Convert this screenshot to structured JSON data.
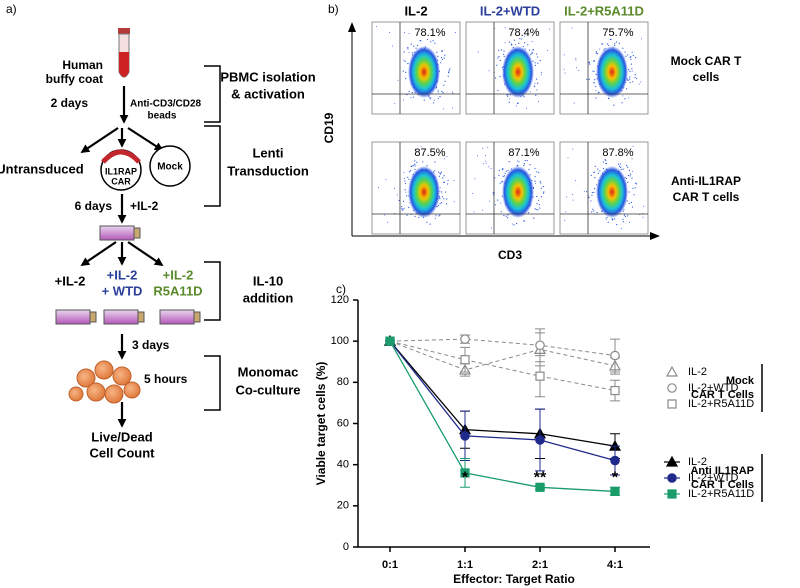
{
  "diagram": {
    "panel_label": "a)",
    "source": [
      "Human",
      "buffy coat"
    ],
    "step1_time": "2 days",
    "beads": [
      "Anti-CD3/CD28",
      "beads"
    ],
    "untransduced": "Untransduced",
    "car": [
      "IL1RAP",
      "CAR"
    ],
    "mock": "Mock",
    "step2_time": "6 days",
    "step2_add": "+IL-2",
    "cond1": "+IL-2",
    "cond2": [
      "+IL-2",
      "+ WTD"
    ],
    "cond3": [
      "+IL-2",
      "R5A11D"
    ],
    "step3_time": "3 days",
    "step4_time": "5 hours",
    "readout": [
      "Live/Dead",
      "Cell Count"
    ],
    "stages": [
      [
        "PBMC isolation",
        "& activation"
      ],
      [
        "Lenti",
        "Transduction"
      ],
      [
        "IL-10",
        "addition"
      ],
      [
        "Monomac",
        "Co-culture"
      ]
    ]
  },
  "flow": {
    "panel_label": "b)",
    "columns": [
      "IL-2",
      "IL-2+WTD",
      "IL-2+R5A11D"
    ],
    "column_colors": [
      "#000000",
      "#2a3f9a",
      "#5a8a2a"
    ],
    "rows": [
      [
        "Mock CAR T",
        "cells"
      ],
      [
        "Anti-IL1RAP",
        "CAR T cells"
      ]
    ],
    "percentages": [
      [
        "78.1%",
        "78.4%",
        "75.7%"
      ],
      [
        "87.5%",
        "87.1%",
        "87.8%"
      ]
    ],
    "ylabel": "CD19",
    "xlabel": "CD3"
  },
  "chart_data": {
    "type": "line",
    "panel_label": "c)",
    "xlabel": "Effector: Target Ratio",
    "ylabel": "Viable target cells (%)",
    "categories": [
      "0:1",
      "1:1",
      "2:1",
      "4:1"
    ],
    "ylim": [
      0,
      120
    ],
    "yticks": [
      0,
      20,
      40,
      60,
      80,
      100,
      120
    ],
    "annotations": [
      null,
      "*",
      "**",
      "*"
    ],
    "legend_groups": [
      [
        "Mock",
        "CAR T Cells"
      ],
      [
        "Anti IL1RAP",
        "CAR T Cells"
      ]
    ],
    "series": [
      {
        "name": "IL-2",
        "group": 0,
        "color": "#8a8a8a",
        "marker": "triangle",
        "filled": false,
        "dashed": true,
        "values": [
          100,
          86,
          96,
          88
        ],
        "errors": [
          0,
          3,
          8,
          4
        ]
      },
      {
        "name": "IL-2+WTD",
        "group": 0,
        "color": "#8a8a8a",
        "marker": "circle",
        "filled": false,
        "dashed": true,
        "values": [
          100,
          101,
          98,
          93
        ],
        "errors": [
          0,
          2,
          8,
          8
        ]
      },
      {
        "name": "IL-2+R5A11D",
        "group": 0,
        "color": "#8a8a8a",
        "marker": "square",
        "filled": false,
        "dashed": true,
        "values": [
          100,
          91,
          83,
          76
        ],
        "errors": [
          0,
          6,
          10,
          5
        ]
      },
      {
        "name": "IL-2",
        "group": 1,
        "color": "#000000",
        "marker": "triangle",
        "filled": true,
        "dashed": false,
        "values": [
          100,
          57,
          55,
          49
        ],
        "errors": [
          0,
          9,
          12,
          6
        ]
      },
      {
        "name": "IL-2+WTD",
        "group": 1,
        "color": "#1f2a8a",
        "marker": "circle",
        "filled": true,
        "dashed": false,
        "values": [
          100,
          54,
          52,
          42
        ],
        "errors": [
          0,
          12,
          15,
          7
        ]
      },
      {
        "name": "IL-2+R5A11D",
        "group": 1,
        "color": "#1a9c6b",
        "marker": "square",
        "filled": true,
        "dashed": false,
        "values": [
          100,
          36,
          29,
          27
        ],
        "errors": [
          0,
          7,
          1,
          2
        ]
      }
    ]
  }
}
